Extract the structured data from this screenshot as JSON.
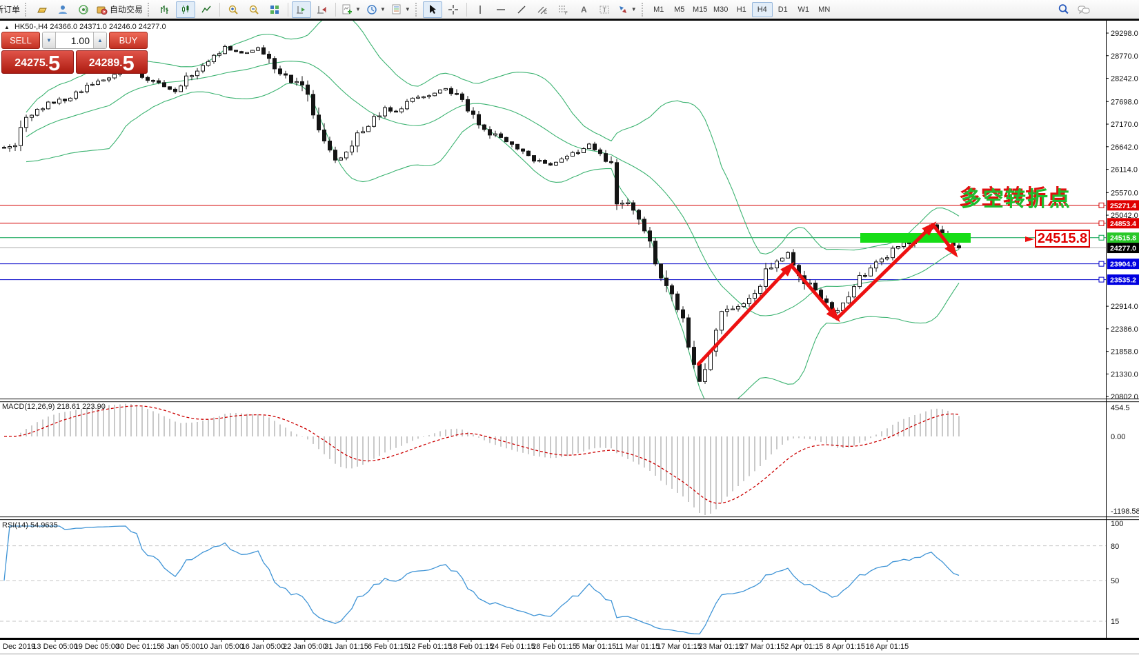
{
  "toolbar": {
    "new_order": "新订单",
    "auto_trading": "自动交易",
    "timeframes": [
      "M1",
      "M5",
      "M15",
      "M30",
      "H1",
      "H4",
      "D1",
      "W1",
      "MN"
    ],
    "active_timeframe": "H4",
    "icons": {
      "gold": "gold-bar",
      "community": "profile",
      "signals": "broadcast",
      "autotrading": "folder-play",
      "bar_chart": "ohlc-bars",
      "candlestick": "candles",
      "line_chart": "polyline",
      "zoom_in": "magnifier-plus",
      "zoom_out": "magnifier-minus",
      "tile_windows": "grid",
      "auto_scroll": "chart-play",
      "chart_shift": "chart-shift",
      "indicators": "doc-plus",
      "periods": "clock",
      "templates": "doc-chart",
      "cursor": "pointer",
      "crosshair": "cross",
      "vertical_line": "vline",
      "horizontal_line": "hline",
      "trendline": "diagonal",
      "channel": "parallel-lines",
      "fibonacci": "fibo-grid",
      "text": "A",
      "text_label": "T-box",
      "arrow_objects": "arrows",
      "search": "magnifier",
      "chat": "speech-bubbles"
    }
  },
  "one_click": {
    "sell_label": "SELL",
    "buy_label": "BUY",
    "volume": "1.00",
    "sell_price_main": "24275",
    "sell_price_dot": ".",
    "sell_price_big": "5",
    "buy_price_main": "24289",
    "buy_price_dot": ".",
    "buy_price_big": "5"
  },
  "chart_header": {
    "symbol": "HK50-,H4",
    "ohlc": "24366.0 24371.0 24246.0 24277.0"
  },
  "chart_data": {
    "type": "candlestick",
    "symbol": "HK50-",
    "timeframe": "H4",
    "ohlc_display": {
      "open": "24366.0",
      "high": "24371.0",
      "low": "24246.0",
      "close": "24277.0"
    },
    "bars_total": 174,
    "price_path_anchors": [
      [
        0,
        26600
      ],
      [
        2,
        26750
      ],
      [
        4,
        27350
      ],
      [
        8,
        27650
      ],
      [
        12,
        27800
      ],
      [
        15,
        28050
      ],
      [
        19,
        28250
      ],
      [
        22,
        28500
      ],
      [
        25,
        28300
      ],
      [
        29,
        28050
      ],
      [
        31,
        27950
      ],
      [
        34,
        28350
      ],
      [
        38,
        28700
      ],
      [
        40,
        28950
      ],
      [
        43,
        28820
      ],
      [
        46,
        28940
      ],
      [
        48,
        28700
      ],
      [
        51,
        28250
      ],
      [
        54,
        28050
      ],
      [
        56,
        27500
      ],
      [
        58,
        26800
      ],
      [
        60,
        26300
      ],
      [
        62,
        26420
      ],
      [
        64,
        26850
      ],
      [
        67,
        27250
      ],
      [
        69,
        27520
      ],
      [
        71,
        27450
      ],
      [
        74,
        27750
      ],
      [
        78,
        27900
      ],
      [
        80,
        28000
      ],
      [
        82,
        27800
      ],
      [
        85,
        27450
      ],
      [
        87,
        27050
      ],
      [
        90,
        26800
      ],
      [
        93,
        26550
      ],
      [
        96,
        26350
      ],
      [
        99,
        26200
      ],
      [
        101,
        26380
      ],
      [
        104,
        26520
      ],
      [
        106,
        26680
      ],
      [
        108,
        26420
      ],
      [
        110,
        26320
      ],
      [
        111,
        25280
      ],
      [
        113,
        25380
      ],
      [
        115,
        24900
      ],
      [
        117,
        24300
      ],
      [
        119,
        23600
      ],
      [
        121,
        23150
      ],
      [
        123,
        22600
      ],
      [
        124,
        21900
      ],
      [
        126,
        21150
      ],
      [
        128,
        21900
      ],
      [
        130,
        22700
      ],
      [
        133,
        22900
      ],
      [
        136,
        23300
      ],
      [
        139,
        23900
      ],
      [
        141,
        24050
      ],
      [
        142,
        24120
      ],
      [
        144,
        23700
      ],
      [
        146,
        23400
      ],
      [
        148,
        23080
      ],
      [
        150,
        22800
      ],
      [
        151,
        22760
      ],
      [
        153,
        23200
      ],
      [
        155,
        23620
      ],
      [
        158,
        23900
      ],
      [
        161,
        24200
      ],
      [
        164,
        24420
      ],
      [
        166,
        24560
      ],
      [
        168,
        24820
      ],
      [
        169,
        24700
      ],
      [
        171,
        24480
      ],
      [
        173,
        24277
      ]
    ],
    "y_axis": {
      "ticks": [
        {
          "label": "29298.0",
          "price": 29298.0
        },
        {
          "label": "28770.0",
          "price": 28770.0
        },
        {
          "label": "28242.0",
          "price": 28242.0
        },
        {
          "label": "27698.0",
          "price": 27698.0
        },
        {
          "label": "27170.0",
          "price": 27170.0
        },
        {
          "label": "26642.0",
          "price": 26642.0
        },
        {
          "label": "26114.0",
          "price": 26114.0
        },
        {
          "label": "25570.0",
          "price": 25570.0
        },
        {
          "label": "25042.0",
          "price": 25042.0
        },
        {
          "label": "22914.0",
          "price": 22914.0
        },
        {
          "label": "22386.0",
          "price": 22386.0
        },
        {
          "label": "21858.0",
          "price": 21858.0
        },
        {
          "label": "21330.0",
          "price": 21330.0
        },
        {
          "label": "20802.0",
          "price": 20802.0
        }
      ]
    },
    "levels": [
      {
        "label": "25271.4",
        "price": 25271.4,
        "color": "#d40000",
        "badge_bg": "#e00000",
        "marker": true
      },
      {
        "label": "24853.4",
        "price": 24853.4,
        "color": "#d40000",
        "badge_bg": "#e00000",
        "marker": true
      },
      {
        "label": "24515.8",
        "price": 24515.8,
        "color": "#00a14b",
        "badge_bg": "#28c828",
        "marker": true
      },
      {
        "label": "24277.0",
        "price": 24277.0,
        "color": "#a8a8a8",
        "badge_bg": "#000000",
        "marker": false,
        "role": "current-price"
      },
      {
        "label": "23904.9",
        "price": 23904.9,
        "color": "#0000c8",
        "badge_bg": "#0000e0",
        "marker": true
      },
      {
        "label": "23535.2",
        "price": 23535.2,
        "color": "#0000c8",
        "badge_bg": "#0000e0",
        "marker": true
      }
    ],
    "highlight_band": {
      "bar_start": 155.1,
      "bar_end": 175.1,
      "price_top": 24624,
      "price_bottom": 24400,
      "color": "#16dd16"
    },
    "trend_arrows": [
      {
        "from": [
          125.8,
          21560
        ],
        "to": [
          142.6,
          23870
        ]
      },
      {
        "from": [
          142.6,
          23870
        ],
        "to": [
          150.9,
          22626
        ]
      },
      {
        "from": [
          150.9,
          22626
        ],
        "to": [
          168.3,
          24817
        ]
      },
      {
        "from": [
          168.3,
          24817
        ],
        "to": [
          172.3,
          24140
        ]
      }
    ],
    "annotations": {
      "turning_point_text": "多空转折点",
      "callout_price": "24515.8"
    },
    "indicators": {
      "macd": {
        "title": "MACD(12,26,9)",
        "values": "218.61 223.90",
        "params": [
          12,
          26,
          9
        ],
        "axis": [
          "454.5",
          "0.00",
          "-1198.58"
        ],
        "hist_color": "#b2b2b2",
        "signal_color": "#cc0000"
      },
      "rsi": {
        "title": "RSI(14)",
        "values": "54.9635",
        "period": 14,
        "axis": [
          "100",
          "80",
          "50",
          "15"
        ],
        "level_lines": [
          80,
          50,
          15
        ],
        "line_color": "#3f94d6"
      }
    },
    "time_axis": {
      "labels": [
        "Dec 2019",
        "13 Dec 05:00",
        "19 Dec 05:00",
        "30 Dec 01:15",
        "6 Jan 05:00",
        "10 Jan 05:00",
        "16 Jan 05:00",
        "22 Jan 05:00",
        "31 Jan 01:15",
        "6 Feb 01:15",
        "12 Feb 01:15",
        "18 Feb 01:15",
        "24 Feb 01:15",
        "28 Feb 01:15",
        "5 Mar 01:15",
        "11 Mar 01:15",
        "17 Mar 01:15",
        "23 Mar 01:15",
        "27 Mar 01:15",
        "2 Apr 01:15",
        "8 Apr 01:15",
        "16 Apr 01:15"
      ]
    },
    "colors": {
      "candle": "#141414",
      "bull_fill": "#ffffff",
      "bear_fill": "#141414",
      "bollinger": "#3cb371",
      "arrow_red": "#ed1111"
    }
  }
}
